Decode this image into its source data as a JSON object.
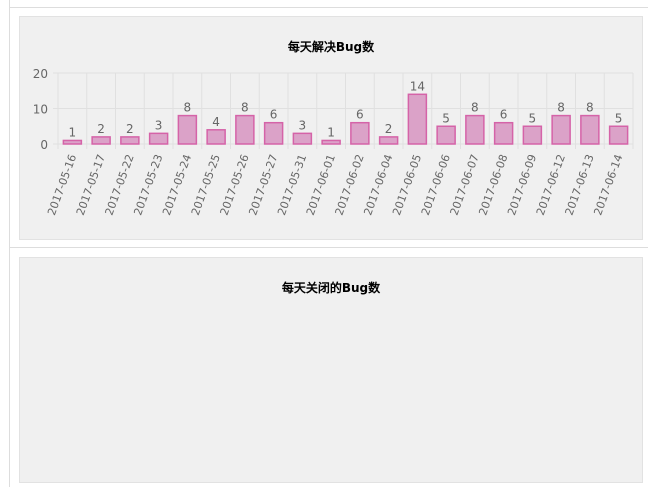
{
  "panels": [
    {
      "title": "每天解决Bug数"
    },
    {
      "title": "每天关闭的Bug数"
    }
  ],
  "chart_data": [
    {
      "type": "bar",
      "title": "每天解决Bug数",
      "categories": [
        "2017-05-16",
        "2017-05-17",
        "2017-05-22",
        "2017-05-23",
        "2017-05-24",
        "2017-05-25",
        "2017-05-26",
        "2017-05-27",
        "2017-05-31",
        "2017-06-01",
        "2017-06-02",
        "2017-06-04",
        "2017-06-05",
        "2017-06-06",
        "2017-06-07",
        "2017-06-08",
        "2017-06-09",
        "2017-06-12",
        "2017-06-13",
        "2017-06-14"
      ],
      "values": [
        1,
        2,
        2,
        3,
        8,
        4,
        8,
        6,
        3,
        1,
        6,
        2,
        14,
        5,
        8,
        6,
        5,
        8,
        8,
        5
      ],
      "yticks": [
        0,
        10,
        20
      ],
      "ylim": [
        0,
        20
      ],
      "grid": true,
      "bar_fill": "#dba2c8",
      "bar_stroke": "#d563a8"
    },
    {
      "type": "bar",
      "title": "每天关闭的Bug数",
      "categories": [],
      "values": []
    }
  ]
}
